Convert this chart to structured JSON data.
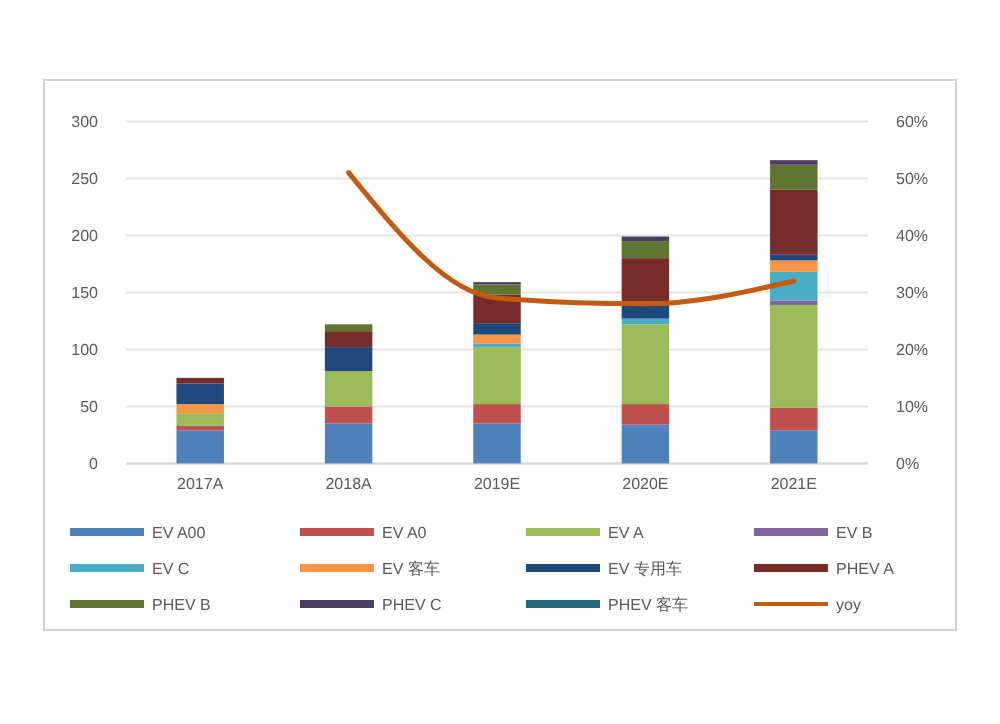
{
  "chart_data": {
    "type": "bar",
    "stacked": true,
    "categories": [
      "2017A",
      "2018A",
      "2019E",
      "2020E",
      "2021E"
    ],
    "series": [
      {
        "name": "EV A00",
        "color": "#4f81bd",
        "values": [
          29,
          35,
          35,
          34,
          29
        ]
      },
      {
        "name": "EV A0",
        "color": "#c0504d",
        "values": [
          4,
          15,
          17,
          18,
          20
        ]
      },
      {
        "name": "EV A",
        "color": "#9bbb59",
        "values": [
          11,
          31,
          50,
          70,
          90
        ]
      },
      {
        "name": "EV B",
        "color": "#8064a2",
        "values": [
          0,
          0,
          0,
          0,
          4
        ]
      },
      {
        "name": "EV C",
        "color": "#4bacc6",
        "values": [
          0,
          0,
          3,
          5,
          25
        ]
      },
      {
        "name": "EV 客车",
        "color": "#f79646",
        "values": [
          8,
          0,
          8,
          0,
          10
        ]
      },
      {
        "name": "EV 专用车",
        "color": "#1f497d",
        "values": [
          18,
          21,
          10,
          15,
          5
        ]
      },
      {
        "name": "PHEV A",
        "color": "#772c2a",
        "values": [
          5,
          14,
          25,
          38,
          57
        ]
      },
      {
        "name": "PHEV B",
        "color": "#5f7530",
        "values": [
          0,
          6,
          9,
          15,
          22
        ]
      },
      {
        "name": "PHEV C",
        "color": "#4d3b62",
        "values": [
          0,
          0,
          2,
          4,
          4
        ]
      },
      {
        "name": "PHEV 客车",
        "color": "#276a7c",
        "values": [
          0,
          0,
          0,
          0,
          0
        ]
      },
      {
        "name": "yoy",
        "type": "line",
        "axis": "y2",
        "color": "#c55a11",
        "values": [
          null,
          51,
          29,
          28,
          32
        ]
      }
    ],
    "ylim": [
      0,
      300
    ],
    "yticks": [
      0,
      50,
      100,
      150,
      200,
      250,
      300
    ],
    "y2lim": [
      0,
      60
    ],
    "y2ticks": [
      {
        "value": 0,
        "label": "0%"
      },
      {
        "value": 10,
        "label": "10%"
      },
      {
        "value": 20,
        "label": "20%"
      },
      {
        "value": 30,
        "label": "30%"
      },
      {
        "value": 40,
        "label": "40%"
      },
      {
        "value": 50,
        "label": "50%"
      },
      {
        "value": 60,
        "label": "60%"
      }
    ],
    "grid": "y",
    "legend": "bottom"
  }
}
